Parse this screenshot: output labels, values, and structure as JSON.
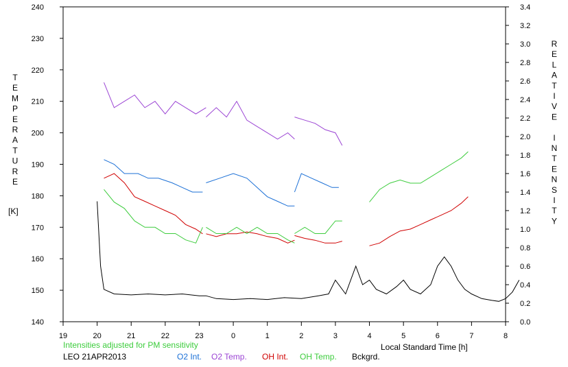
{
  "chart_data": {
    "type": "line",
    "xlabel": "Local Standard Time [h]",
    "ylabel_left": "TEMPERATURE",
    "ylabel_left_unit": "[K]",
    "ylabel_right": "RELATIVE INTENSITY",
    "note": "Intensities adjusted for PM sensitivity",
    "station_date": "LEO 21APR2013",
    "xlim": [
      19,
      8
    ],
    "x_ticks": [
      "19",
      "20",
      "21",
      "22",
      "23",
      "0",
      "1",
      "2",
      "3",
      "4",
      "5",
      "6",
      "7",
      "8"
    ],
    "ylim_left": [
      140,
      240
    ],
    "y_ticks_left": [
      "140",
      "150",
      "160",
      "170",
      "180",
      "190",
      "200",
      "210",
      "220",
      "230",
      "240"
    ],
    "ylim_right": [
      0.0,
      3.4
    ],
    "y_ticks_right": [
      "0.0",
      "0.2",
      "0.4",
      "0.6",
      "0.8",
      "1.0",
      "1.2",
      "1.4",
      "1.6",
      "1.8",
      "2.0",
      "2.2",
      "2.4",
      "2.6",
      "2.8",
      "3.0",
      "3.2",
      "3.4"
    ],
    "grid": false,
    "legend_placement": "bottom",
    "series": [
      {
        "name": "O2 Int.",
        "axis": "right",
        "color": "#1a6fd6",
        "segments": [
          [
            [
              20.2,
              1.75
            ],
            [
              20.5,
              1.7
            ],
            [
              20.8,
              1.6
            ],
            [
              21.2,
              1.6
            ],
            [
              21.5,
              1.55
            ],
            [
              21.8,
              1.55
            ],
            [
              22.2,
              1.5
            ],
            [
              22.5,
              1.45
            ],
            [
              22.8,
              1.4
            ],
            [
              23.1,
              1.4
            ]
          ],
          [
            [
              23.2,
              1.5
            ],
            [
              23.6,
              1.55
            ],
            [
              24.0,
              1.6
            ],
            [
              24.4,
              1.55
            ],
            [
              24.7,
              1.45
            ],
            [
              25.0,
              1.35
            ],
            [
              25.3,
              1.3
            ],
            [
              25.6,
              1.25
            ],
            [
              25.8,
              1.25
            ]
          ],
          [
            [
              25.8,
              1.4
            ],
            [
              26.0,
              1.6
            ],
            [
              26.3,
              1.55
            ],
            [
              26.6,
              1.5
            ],
            [
              26.9,
              1.45
            ],
            [
              27.1,
              1.45
            ]
          ]
        ]
      },
      {
        "name": "O2 Temp.",
        "axis": "left",
        "color": "#9b44d4",
        "segments": [
          [
            [
              20.2,
              216
            ],
            [
              20.5,
              208
            ],
            [
              20.8,
              210
            ],
            [
              21.1,
              212
            ],
            [
              21.4,
              208
            ],
            [
              21.7,
              210
            ],
            [
              22.0,
              206
            ],
            [
              22.3,
              210
            ],
            [
              22.6,
              208
            ],
            [
              22.9,
              206
            ],
            [
              23.2,
              208
            ]
          ],
          [
            [
              23.2,
              205
            ],
            [
              23.5,
              208
            ],
            [
              23.8,
              205
            ],
            [
              24.1,
              210
            ],
            [
              24.4,
              204
            ],
            [
              24.7,
              202
            ],
            [
              25.0,
              200
            ],
            [
              25.3,
              198
            ],
            [
              25.6,
              200
            ],
            [
              25.8,
              198
            ]
          ],
          [
            [
              25.8,
              205
            ],
            [
              26.1,
              204
            ],
            [
              26.4,
              203
            ],
            [
              26.7,
              201
            ],
            [
              27.0,
              200
            ],
            [
              27.2,
              196
            ]
          ]
        ]
      },
      {
        "name": "OH Int.",
        "axis": "right",
        "color": "#d00000",
        "segments": [
          [
            [
              20.2,
              1.55
            ],
            [
              20.5,
              1.6
            ],
            [
              20.8,
              1.5
            ],
            [
              21.1,
              1.35
            ],
            [
              21.4,
              1.3
            ],
            [
              21.7,
              1.25
            ],
            [
              22.0,
              1.2
            ],
            [
              22.3,
              1.15
            ],
            [
              22.6,
              1.05
            ],
            [
              22.9,
              1.0
            ],
            [
              23.1,
              0.95
            ]
          ],
          [
            [
              23.2,
              0.95
            ],
            [
              23.5,
              0.92
            ],
            [
              23.8,
              0.95
            ],
            [
              24.1,
              0.95
            ],
            [
              24.4,
              0.97
            ],
            [
              24.7,
              0.95
            ],
            [
              25.0,
              0.92
            ],
            [
              25.3,
              0.9
            ],
            [
              25.6,
              0.85
            ],
            [
              25.8,
              0.88
            ]
          ],
          [
            [
              25.8,
              0.93
            ],
            [
              26.1,
              0.9
            ],
            [
              26.4,
              0.88
            ],
            [
              26.7,
              0.85
            ],
            [
              27.0,
              0.85
            ],
            [
              27.2,
              0.87
            ]
          ],
          [
            [
              28.0,
              0.82
            ],
            [
              28.3,
              0.85
            ],
            [
              28.6,
              0.92
            ],
            [
              28.9,
              0.98
            ],
            [
              29.2,
              1.0
            ],
            [
              29.5,
              1.05
            ],
            [
              29.8,
              1.1
            ],
            [
              30.1,
              1.15
            ],
            [
              30.4,
              1.2
            ],
            [
              30.7,
              1.28
            ],
            [
              30.9,
              1.35
            ]
          ]
        ]
      },
      {
        "name": "OH Temp.",
        "axis": "left",
        "color": "#3ccc3c",
        "segments": [
          [
            [
              20.2,
              182
            ],
            [
              20.5,
              178
            ],
            [
              20.8,
              176
            ],
            [
              21.1,
              172
            ],
            [
              21.4,
              170
            ],
            [
              21.7,
              170
            ],
            [
              22.0,
              168
            ],
            [
              22.3,
              168
            ],
            [
              22.6,
              166
            ],
            [
              22.9,
              165
            ],
            [
              23.1,
              170
            ]
          ],
          [
            [
              23.2,
              170
            ],
            [
              23.5,
              168
            ],
            [
              23.8,
              168
            ],
            [
              24.1,
              170
            ],
            [
              24.4,
              168
            ],
            [
              24.7,
              170
            ],
            [
              25.0,
              168
            ],
            [
              25.3,
              168
            ],
            [
              25.6,
              166
            ],
            [
              25.8,
              165
            ]
          ],
          [
            [
              25.8,
              168
            ],
            [
              26.1,
              170
            ],
            [
              26.4,
              168
            ],
            [
              26.7,
              168
            ],
            [
              27.0,
              172
            ],
            [
              27.2,
              172
            ]
          ],
          [
            [
              28.0,
              178
            ],
            [
              28.3,
              182
            ],
            [
              28.6,
              184
            ],
            [
              28.9,
              185
            ],
            [
              29.2,
              184
            ],
            [
              29.5,
              184
            ],
            [
              29.8,
              186
            ],
            [
              30.1,
              188
            ],
            [
              30.4,
              190
            ],
            [
              30.7,
              192
            ],
            [
              30.9,
              194
            ]
          ]
        ]
      },
      {
        "name": "Bckgrd.",
        "axis": "right",
        "color": "#000000",
        "segments": [
          [
            [
              20.0,
              1.3
            ],
            [
              20.1,
              0.6
            ],
            [
              20.2,
              0.35
            ],
            [
              20.5,
              0.3
            ],
            [
              21.0,
              0.29
            ],
            [
              21.5,
              0.3
            ],
            [
              22.0,
              0.29
            ],
            [
              22.5,
              0.3
            ],
            [
              23.0,
              0.28
            ],
            [
              23.2,
              0.28
            ],
            [
              23.5,
              0.25
            ],
            [
              24.0,
              0.24
            ],
            [
              24.5,
              0.25
            ],
            [
              25.0,
              0.24
            ],
            [
              25.5,
              0.26
            ],
            [
              26.0,
              0.25
            ],
            [
              26.5,
              0.28
            ],
            [
              26.8,
              0.3
            ],
            [
              27.0,
              0.45
            ],
            [
              27.3,
              0.3
            ],
            [
              27.6,
              0.6
            ],
            [
              27.8,
              0.4
            ],
            [
              28.0,
              0.45
            ],
            [
              28.2,
              0.35
            ],
            [
              28.5,
              0.3
            ],
            [
              28.8,
              0.38
            ],
            [
              29.0,
              0.45
            ],
            [
              29.2,
              0.35
            ],
            [
              29.5,
              0.3
            ],
            [
              29.8,
              0.4
            ],
            [
              30.0,
              0.6
            ],
            [
              30.2,
              0.7
            ],
            [
              30.4,
              0.6
            ],
            [
              30.6,
              0.45
            ],
            [
              30.8,
              0.35
            ],
            [
              31.0,
              0.3
            ],
            [
              31.3,
              0.25
            ],
            [
              31.6,
              0.23
            ],
            [
              31.8,
              0.22
            ],
            [
              32.0,
              0.25
            ],
            [
              32.2,
              0.32
            ],
            [
              32.4,
              0.45
            ]
          ]
        ]
      }
    ],
    "legend": [
      {
        "label": "O2 Int.",
        "color": "#1a6fd6"
      },
      {
        "label": "O2 Temp.",
        "color": "#9b44d4"
      },
      {
        "label": "OH Int.",
        "color": "#d00000"
      },
      {
        "label": "OH Temp.",
        "color": "#3ccc3c"
      },
      {
        "label": "Bckgrd.",
        "color": "#000000"
      }
    ]
  }
}
